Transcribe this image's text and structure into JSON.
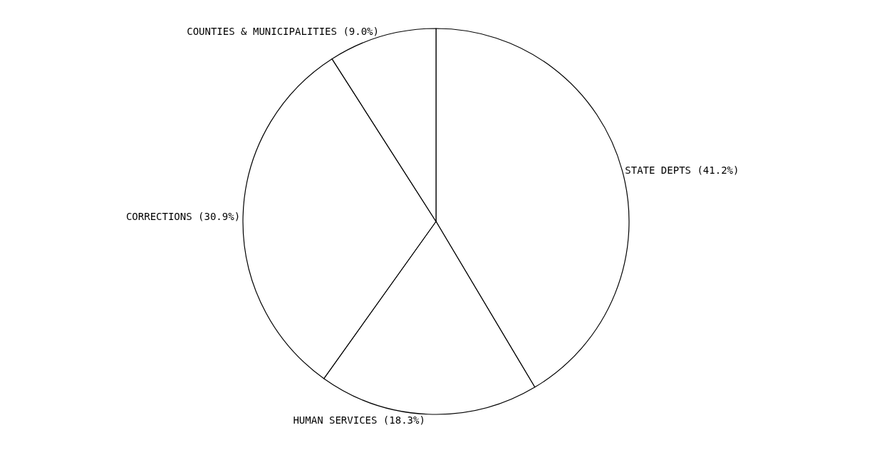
{
  "chart_data": {
    "type": "pie",
    "categories": [
      "STATE DEPTS",
      "HUMAN SERVICES",
      "CORRECTIONS",
      "COUNTIES & MUNICIPALITIES"
    ],
    "values": [
      41.2,
      18.3,
      30.9,
      9.0
    ],
    "value_labels": [
      "(41.2%)",
      "(18.3%)",
      "(30.9%)",
      "(9.0%)"
    ],
    "colors": [
      "#ffffff",
      "#ffffff",
      "#ffffff",
      "#ffffff"
    ],
    "legend": false
  }
}
